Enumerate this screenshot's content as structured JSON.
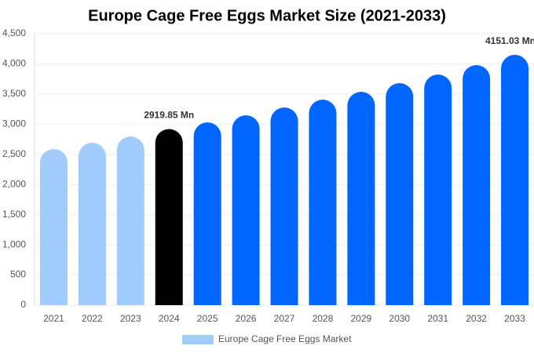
{
  "chart_data": {
    "type": "bar",
    "title": "Europe Cage Free Eggs Market Size (2021-2033)",
    "categories": [
      "2021",
      "2022",
      "2023",
      "2024",
      "2025",
      "2026",
      "2027",
      "2028",
      "2029",
      "2030",
      "2031",
      "2032",
      "2033"
    ],
    "series": [
      {
        "name": "Europe Cage Free Eggs Market",
        "color": "#a0cbfa",
        "colors": [
          "#a0cbfa",
          "#a0cbfa",
          "#a0cbfa",
          "#000000",
          "#0066ff",
          "#0066ff",
          "#0066ff",
          "#0066ff",
          "#0066ff",
          "#0066ff",
          "#0066ff",
          "#0066ff",
          "#0066ff"
        ],
        "values": [
          2588,
          2692,
          2796,
          2919.85,
          3030,
          3147,
          3277,
          3407,
          3537,
          3680,
          3823,
          3979,
          4151.03
        ],
        "value_labels": [
          null,
          null,
          null,
          "2919.85 Mn",
          null,
          null,
          null,
          null,
          null,
          null,
          null,
          null,
          "4151.03 Mn"
        ]
      }
    ],
    "ylim": [
      0,
      4500
    ],
    "yticks": [
      0,
      500,
      {
        "value": 1000,
        "label": "1,000"
      },
      {
        "value": 1500,
        "label": "1,500"
      },
      {
        "value": 2000,
        "label": "2,000"
      },
      {
        "value": 2500,
        "label": "2,500"
      },
      {
        "value": 3000,
        "label": "3,000"
      },
      {
        "value": 3500,
        "label": "3,500"
      },
      {
        "value": 4000,
        "label": "4,000"
      },
      {
        "value": 4500,
        "label": "4,500"
      }
    ],
    "grid": true
  }
}
